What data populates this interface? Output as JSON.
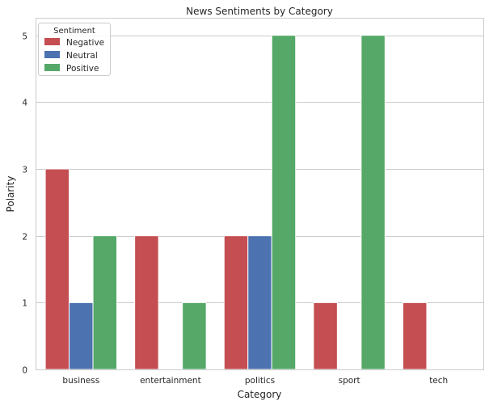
{
  "chart_data": {
    "type": "bar",
    "title": "News Sentiments by Category",
    "xlabel": "Category",
    "ylabel": "Polarity",
    "categories": [
      "business",
      "entertainment",
      "politics",
      "sport",
      "tech"
    ],
    "ylim": [
      0,
      5.25
    ],
    "yticks": [
      0,
      1,
      2,
      3,
      4,
      5
    ],
    "grid": true,
    "legend": {
      "title": "Sentiment",
      "placement": "top-left"
    },
    "series": [
      {
        "name": "Negative",
        "color": "#c44e52",
        "values": [
          3,
          2,
          2,
          1,
          1
        ]
      },
      {
        "name": "Neutral",
        "color": "#4c72b0",
        "values": [
          1,
          0,
          2,
          0,
          0
        ]
      },
      {
        "name": "Positive",
        "color": "#55a868",
        "values": [
          2,
          1,
          5,
          5,
          0
        ]
      }
    ]
  }
}
